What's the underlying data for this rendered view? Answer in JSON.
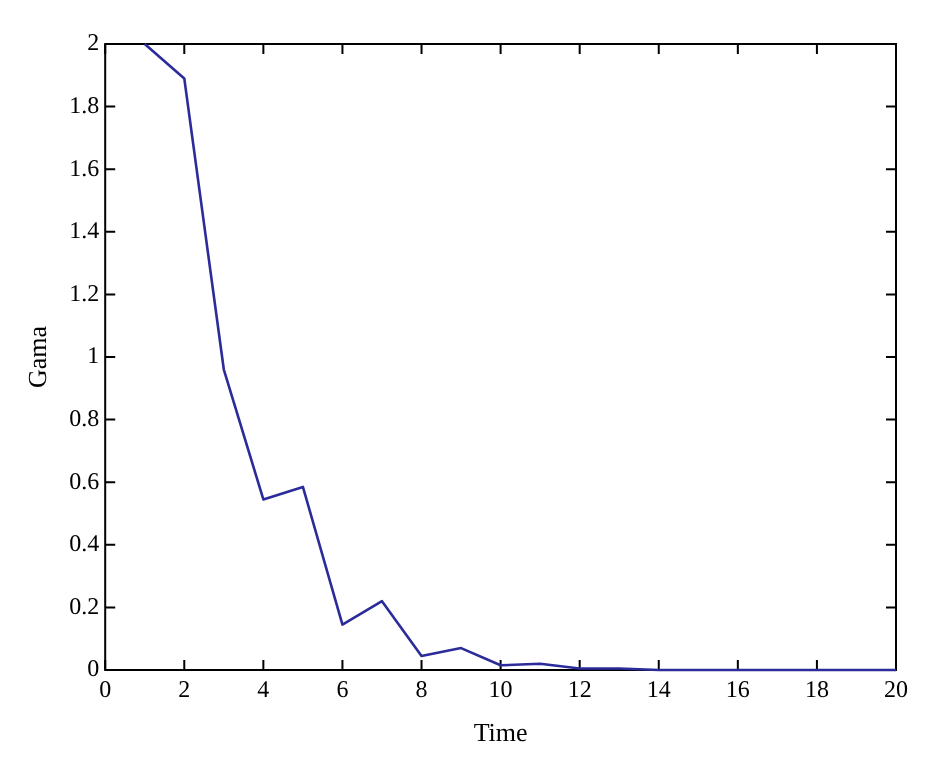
{
  "chart_data": {
    "type": "line",
    "xlabel": "Time",
    "ylabel": "Gama",
    "x": [
      1,
      2,
      3,
      4,
      5,
      6,
      7,
      8,
      9,
      10,
      11,
      12,
      13,
      14,
      15,
      16,
      17,
      18,
      19,
      20
    ],
    "series": [
      {
        "color": "#2b2b9a",
        "values": [
          2.0,
          1.89,
          0.96,
          0.545,
          0.585,
          0.145,
          0.22,
          0.045,
          0.07,
          0.015,
          0.02,
          0.005,
          0.005,
          0,
          0,
          0,
          0,
          0,
          0,
          0
        ]
      }
    ],
    "xlim": [
      0,
      20
    ],
    "xticks": [
      0,
      2,
      4,
      6,
      8,
      10,
      12,
      14,
      16,
      18,
      20
    ],
    "ylim": [
      0,
      2
    ],
    "yticks": [
      0,
      0.2,
      0.4,
      0.6,
      0.8,
      1,
      1.2,
      1.4,
      1.6,
      1.8,
      2
    ],
    "grid": false,
    "legend": false,
    "marker": "none",
    "line_style": "solid"
  }
}
